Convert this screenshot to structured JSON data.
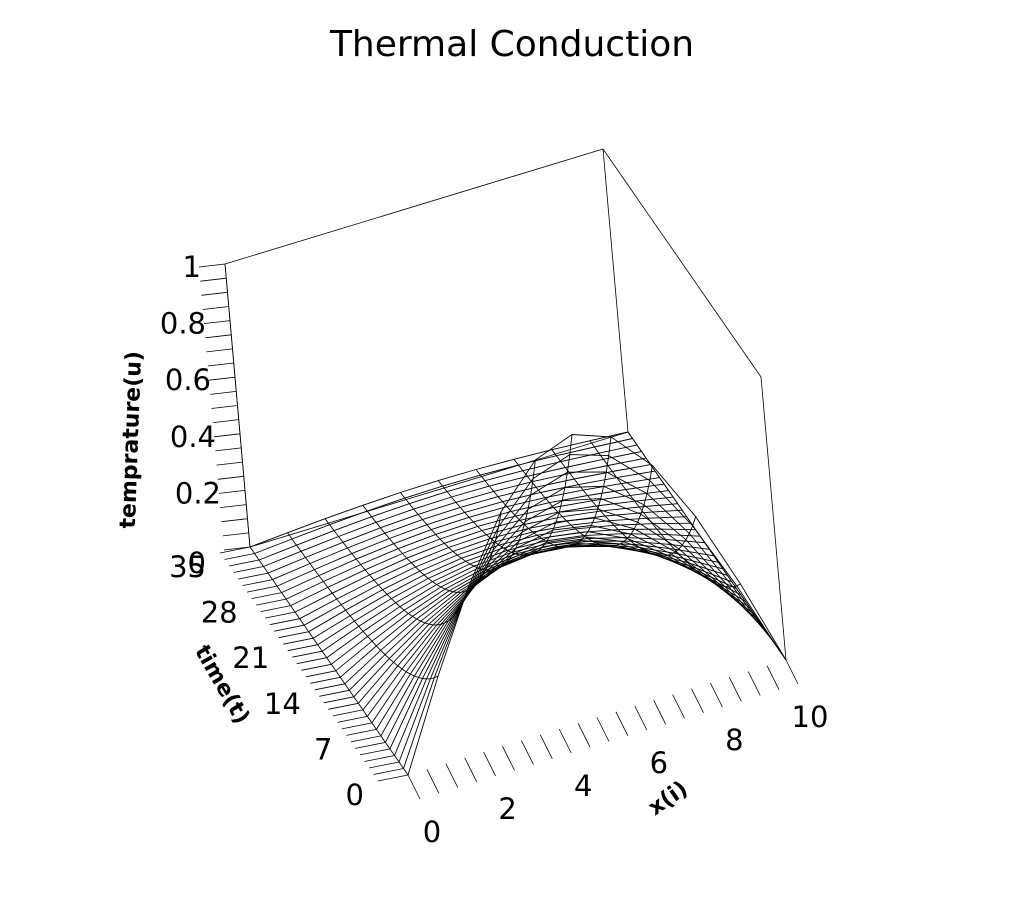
{
  "chart_data": {
    "type": "surface",
    "title": "Thermal Conduction",
    "xlabel": "x(i)",
    "ylabel": "time(t)",
    "zlabel": "temprature(u)",
    "x_ticks": [
      "0",
      "2",
      "4",
      "6",
      "8",
      "10"
    ],
    "t_ticks": [
      "0",
      "7",
      "14",
      "21",
      "28",
      "35"
    ],
    "z_ticks": [
      "0.2",
      "0.4",
      "0.6",
      "0.8",
      "1"
    ],
    "xlim": [
      0,
      10
    ],
    "tlim": [
      0,
      35
    ],
    "zlim": [
      0,
      1
    ],
    "model": "u = sin(pi*x/10) * exp(-0.0987*t)",
    "grid_x": 11,
    "grid_t": 36,
    "line_color": "#000000",
    "background": "#ffffff"
  }
}
